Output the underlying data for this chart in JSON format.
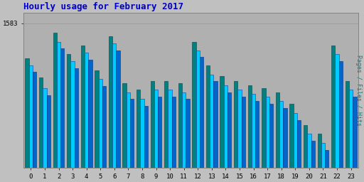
{
  "title": "Hourly usage for February 2017",
  "title_color": "#0000cc",
  "title_fontsize": 9,
  "hours": [
    0,
    1,
    2,
    3,
    4,
    5,
    6,
    7,
    8,
    9,
    10,
    11,
    12,
    13,
    14,
    15,
    16,
    17,
    18,
    19,
    20,
    21,
    22,
    23
  ],
  "pages": [
    1543,
    1522,
    1572,
    1548,
    1558,
    1530,
    1568,
    1515,
    1508,
    1518,
    1518,
    1515,
    1562,
    1535,
    1523,
    1518,
    1513,
    1510,
    1505,
    1492,
    1468,
    1458,
    1558,
    1518
  ],
  "files": [
    1535,
    1510,
    1562,
    1540,
    1550,
    1520,
    1560,
    1505,
    1498,
    1508,
    1508,
    1505,
    1552,
    1525,
    1513,
    1508,
    1503,
    1500,
    1495,
    1482,
    1458,
    1448,
    1548,
    1508
  ],
  "hits": [
    1528,
    1502,
    1555,
    1532,
    1542,
    1512,
    1552,
    1498,
    1490,
    1500,
    1500,
    1498,
    1545,
    1518,
    1505,
    1500,
    1495,
    1492,
    1487,
    1474,
    1450,
    1440,
    1540,
    1500
  ],
  "pages_color": "#008080",
  "files_color": "#00ccff",
  "hits_color": "#0066cc",
  "bg_color": "#c0c0c0",
  "plot_bg_color": "#b0b0b0",
  "ylabel": "Pages / Files / Hits",
  "ylabel_color": "#008080",
  "ylim_min": 1420,
  "ylim_max": 1595,
  "ytick_val": 1583,
  "ytick_label": "1583",
  "bar_width": 0.27
}
